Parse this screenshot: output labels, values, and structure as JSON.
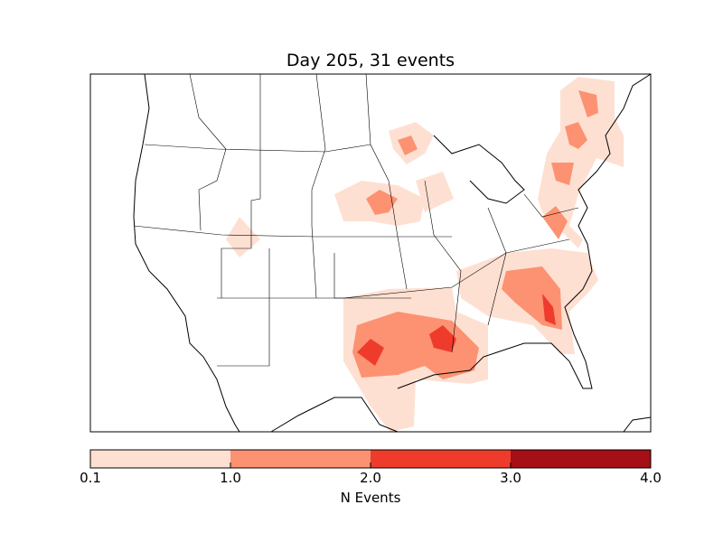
{
  "title": "Day 205, 31 events",
  "colorbar": {
    "label": "N Events",
    "ticks": [
      "0.1",
      "1.0",
      "2.0",
      "3.0",
      "4.0"
    ],
    "bins": [
      {
        "range": [
          0.1,
          1.0
        ],
        "color": "#fee0d2"
      },
      {
        "range": [
          1.0,
          2.0
        ],
        "color": "#fc9272"
      },
      {
        "range": [
          2.0,
          3.0
        ],
        "color": "#ef3b2c"
      },
      {
        "range": [
          3.0,
          4.0
        ],
        "color": "#a50f15"
      }
    ]
  },
  "map": {
    "region": "Continental United States",
    "projection": "lambert conformal"
  }
}
